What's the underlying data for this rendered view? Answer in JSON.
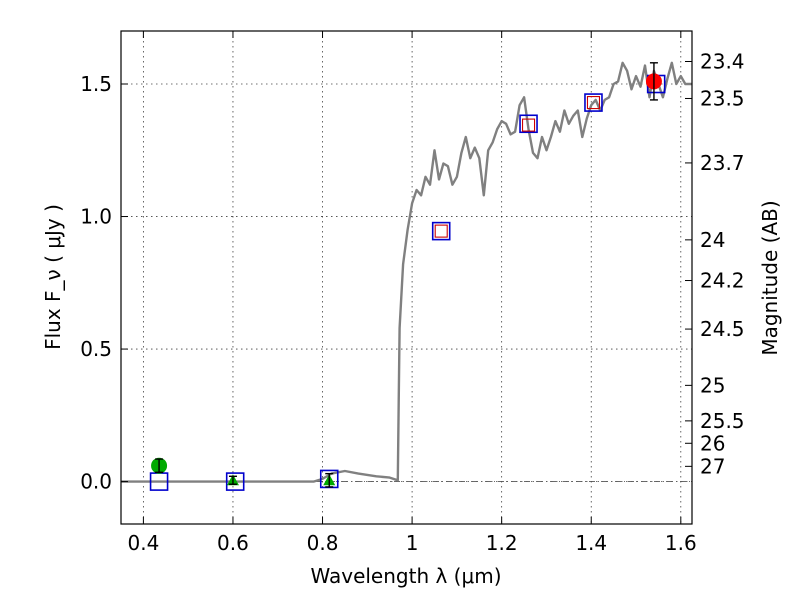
{
  "chart_data": {
    "type": "scatter",
    "title": "",
    "xlabel": "Wavelength  λ (μm)",
    "ylabel": "Flux  F_ν  ( μJy )",
    "ylabel_right": "Magnitude (AB)",
    "xlim": [
      0.35,
      1.625
    ],
    "ylim": [
      -0.16,
      1.7
    ],
    "grid": true,
    "x_ticks": [
      0.4,
      0.6,
      0.8,
      1.0,
      1.2,
      1.4,
      1.6
    ],
    "x_tick_labels": [
      "0.4",
      "0.6",
      "0.8",
      "1",
      "1.2",
      "1.4",
      "1.6"
    ],
    "y_ticks": [
      0.0,
      0.5,
      1.0,
      1.5
    ],
    "y_tick_labels": [
      "0.0",
      "0.5",
      "1.0",
      "1.5"
    ],
    "mag_ticks": [
      23.4,
      23.5,
      23.7,
      24,
      24.2,
      24.5,
      25,
      25.5,
      26,
      27
    ],
    "mag_tick_labels": [
      "23.4",
      "23.5",
      "23.7",
      "24",
      "24.2",
      "24.5",
      "25",
      "25.5",
      "26",
      "27"
    ],
    "model_spectrum": {
      "color": "#808080",
      "x": [
        0.35,
        0.5,
        0.6,
        0.7,
        0.78,
        0.8,
        0.82,
        0.85,
        0.88,
        0.92,
        0.95,
        0.968,
        0.97,
        0.972,
        0.98,
        0.99,
        1.0,
        1.01,
        1.02,
        1.03,
        1.04,
        1.05,
        1.06,
        1.07,
        1.08,
        1.09,
        1.1,
        1.11,
        1.12,
        1.13,
        1.14,
        1.15,
        1.16,
        1.17,
        1.18,
        1.19,
        1.2,
        1.21,
        1.22,
        1.23,
        1.24,
        1.25,
        1.26,
        1.27,
        1.28,
        1.29,
        1.3,
        1.31,
        1.32,
        1.33,
        1.34,
        1.35,
        1.36,
        1.37,
        1.38,
        1.39,
        1.4,
        1.41,
        1.42,
        1.43,
        1.44,
        1.45,
        1.46,
        1.47,
        1.48,
        1.49,
        1.5,
        1.51,
        1.52,
        1.53,
        1.54,
        1.55,
        1.56,
        1.57,
        1.58,
        1.59,
        1.6,
        1.61,
        1.625
      ],
      "y": [
        0.0,
        0.0,
        0.0,
        0.0,
        0.0,
        0.01,
        0.03,
        0.04,
        0.03,
        0.02,
        0.015,
        0.005,
        0.3,
        0.58,
        0.82,
        0.95,
        1.05,
        1.1,
        1.08,
        1.15,
        1.12,
        1.25,
        1.14,
        1.2,
        1.19,
        1.12,
        1.15,
        1.24,
        1.3,
        1.22,
        1.26,
        1.22,
        1.08,
        1.25,
        1.28,
        1.33,
        1.36,
        1.35,
        1.31,
        1.32,
        1.42,
        1.45,
        1.33,
        1.24,
        1.22,
        1.3,
        1.25,
        1.3,
        1.36,
        1.32,
        1.4,
        1.35,
        1.38,
        1.4,
        1.3,
        1.37,
        1.42,
        1.44,
        1.4,
        1.44,
        1.45,
        1.5,
        1.51,
        1.58,
        1.55,
        1.48,
        1.53,
        1.49,
        1.57,
        1.45,
        1.55,
        1.5,
        1.45,
        1.52,
        1.58,
        1.5,
        1.53,
        1.5,
        1.5
      ]
    },
    "model_photometry": {
      "color": "#0000cc",
      "x": [
        0.435,
        0.605,
        0.815,
        1.065,
        1.26,
        1.405,
        1.545
      ],
      "y": [
        0.0,
        0.0,
        0.01,
        0.945,
        1.35,
        1.43,
        1.5
      ]
    },
    "observed_open": {
      "color": "#cc0000",
      "x": [
        1.065,
        1.26,
        1.405
      ],
      "y": [
        0.945,
        1.345,
        1.43
      ]
    },
    "detections": [
      {
        "x": 0.435,
        "y": 0.06,
        "err": 0.025,
        "color": "#00aa00",
        "marker": "circle"
      },
      {
        "x": 0.6,
        "y": 0.005,
        "err": 0.015,
        "color": "#00aa00",
        "marker": "triangle"
      },
      {
        "x": 0.815,
        "y": 0.005,
        "err": 0.025,
        "color": "#00aa00",
        "marker": "triangle"
      },
      {
        "x": 1.54,
        "y": 1.51,
        "err": 0.07,
        "color": "#ff0000",
        "marker": "circle"
      }
    ]
  }
}
